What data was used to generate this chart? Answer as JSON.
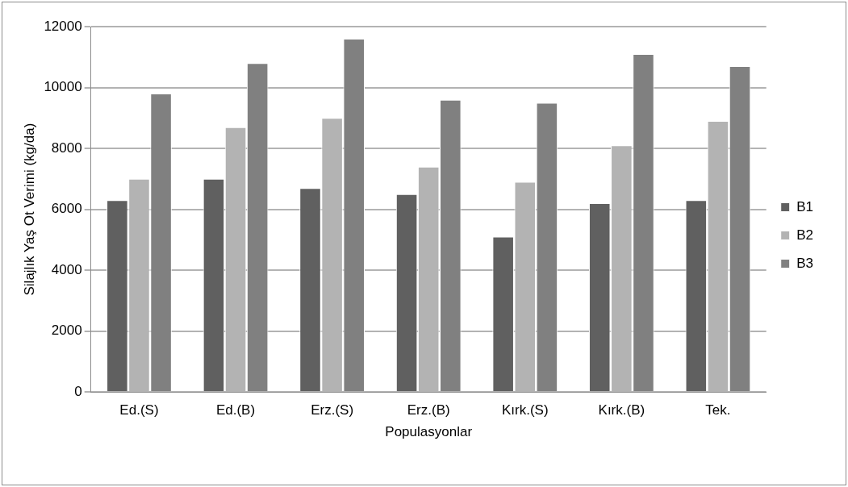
{
  "chart_data": {
    "type": "bar",
    "xlabel": "Populasyonlar",
    "ylabel": "Silajlık Yaş Ot Verimi (kg/da)",
    "categories": [
      "Ed.(S)",
      "Ed.(B)",
      "Erz.(S)",
      "Erz.(B)",
      "Kırk.(S)",
      "Kırk.(B)",
      "Tek."
    ],
    "series": [
      {
        "name": "B1",
        "color": "#606060",
        "values": [
          6300,
          7000,
          6700,
          6500,
          5100,
          6200,
          6300
        ]
      },
      {
        "name": "B2",
        "color": "#b3b3b3",
        "values": [
          7000,
          8700,
          9000,
          7400,
          6900,
          8100,
          8900
        ]
      },
      {
        "name": "B3",
        "color": "#808080",
        "values": [
          9800,
          10800,
          11600,
          9600,
          9500,
          11100,
          10700
        ]
      }
    ],
    "ylim": [
      0,
      12000
    ],
    "yticks": [
      0,
      2000,
      4000,
      6000,
      8000,
      10000,
      12000
    ],
    "grid": "y",
    "legend": "right"
  }
}
